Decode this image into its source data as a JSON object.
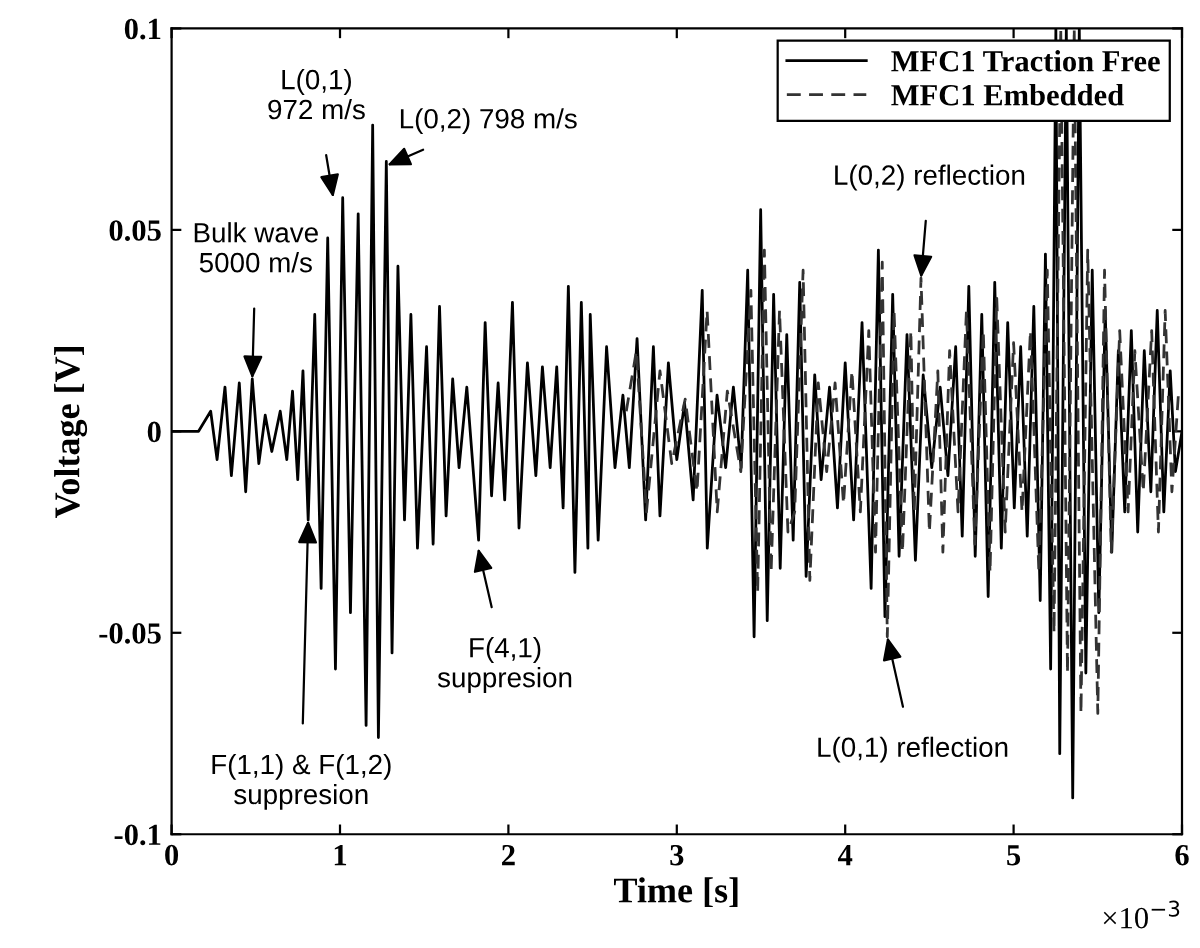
{
  "chart_data": {
    "type": "line",
    "xlabel": "Time [s]",
    "ylabel": "Voltage [V]",
    "xlim": [
      0,
      6
    ],
    "xticks": [
      0,
      1,
      2,
      3,
      4,
      5,
      6
    ],
    "ylim": [
      -0.1,
      0.1
    ],
    "yticks": [
      -0.1,
      -0.05,
      0,
      0.05,
      0.1
    ],
    "grid": false,
    "legend": "top right",
    "marker": "none",
    "series": [
      {
        "name": "MFC1 Traction Free",
        "color": "#000000",
        "line_style": "solid",
        "x": [
          0,
          0.16,
          0.232,
          0.27,
          0.317,
          0.355,
          0.402,
          0.44,
          0.479,
          0.518,
          0.556,
          0.595,
          0.645,
          0.684,
          0.718,
          0.749,
          0.78,
          0.811,
          0.85,
          0.888,
          0.927,
          0.973,
          1.016,
          1.062,
          1.108,
          1.155,
          1.194,
          1.228,
          1.275,
          1.309,
          1.344,
          1.383,
          1.421,
          1.46,
          1.514,
          1.553,
          1.591,
          1.63,
          1.669,
          1.707,
          1.753,
          1.823,
          1.862,
          1.9,
          1.939,
          1.978,
          2.024,
          2.063,
          2.113,
          2.163,
          2.202,
          2.248,
          2.287,
          2.325,
          2.356,
          2.395,
          2.433,
          2.472,
          2.486,
          2.533,
          2.583,
          2.633,
          2.68,
          2.718,
          2.764,
          2.815,
          2.861,
          2.9,
          2.95,
          3.0,
          3.046,
          3.097,
          3.151,
          3.181,
          3.239,
          3.29,
          3.336,
          3.382,
          3.421,
          3.459,
          3.498,
          3.537,
          3.575,
          3.614,
          3.653,
          3.691,
          3.73,
          3.768,
          3.819,
          3.857,
          3.907,
          3.954,
          4.0,
          4.05,
          4.1,
          4.154,
          4.197,
          4.236,
          4.282,
          4.32,
          4.367,
          4.417,
          4.463,
          4.514,
          4.564,
          4.61,
          4.656,
          4.695,
          4.734,
          4.772,
          4.811,
          4.849,
          4.888,
          4.927,
          4.965,
          5.004,
          5.042,
          5.081,
          5.12,
          5.158,
          5.189,
          5.22,
          5.251,
          5.274,
          5.313,
          5.351,
          5.39,
          5.429,
          5.467,
          5.506,
          5.544,
          5.583,
          5.622,
          5.66,
          5.699,
          5.737,
          5.776,
          5.815,
          5.853,
          5.892,
          5.93,
          5.961,
          6.0
        ],
        "values": [
          0,
          0,
          0.005,
          -0.007,
          0.011,
          -0.011,
          0.012,
          -0.015,
          0.013,
          -0.008,
          0.004,
          -0.005,
          0.005,
          -0.007,
          0.01,
          -0.012,
          0.015,
          -0.022,
          0.029,
          -0.039,
          0.048,
          -0.059,
          0.058,
          -0.045,
          0.054,
          -0.073,
          0.076,
          -0.076,
          0.067,
          -0.055,
          0.041,
          -0.022,
          0.029,
          -0.029,
          0.021,
          -0.028,
          0.031,
          -0.021,
          0.013,
          -0.009,
          0.011,
          -0.027,
          0.027,
          -0.016,
          0.012,
          -0.017,
          0.032,
          -0.024,
          0.017,
          -0.011,
          0.016,
          -0.009,
          0.016,
          -0.019,
          0.036,
          -0.035,
          0.032,
          -0.029,
          0.029,
          -0.027,
          0.021,
          -0.009,
          0.009,
          -0.009,
          0.023,
          -0.022,
          0.021,
          -0.021,
          0.017,
          -0.007,
          0.007,
          -0.017,
          0.035,
          -0.029,
          0.009,
          -0.009,
          0.011,
          -0.009,
          0.04,
          -0.051,
          0.055,
          -0.047,
          0.034,
          -0.034,
          0.024,
          -0.027,
          0.037,
          -0.036,
          0.014,
          -0.012,
          0.011,
          -0.019,
          0.017,
          -0.022,
          0.027,
          -0.039,
          0.045,
          -0.046,
          0.034,
          -0.031,
          0.024,
          -0.032,
          0.014,
          -0.009,
          0.011,
          -0.011,
          0.021,
          -0.026,
          0.036,
          -0.031,
          0.029,
          -0.041,
          0.037,
          -0.029,
          0.027,
          -0.019,
          0.021,
          -0.026,
          0.031,
          -0.042,
          0.044,
          -0.059,
          0.1,
          -0.08,
          0.1,
          -0.091,
          0.1,
          -0.06,
          0.04,
          -0.045,
          0.03,
          -0.03,
          0.02,
          -0.02,
          0.025,
          -0.025,
          0.02,
          -0.015,
          0.03,
          -0.02,
          0.015,
          -0.01,
          0
        ]
      },
      {
        "name": "MFC1 Embedded",
        "color": "#333333",
        "line_style": "dashed",
        "x": [
          2.7,
          2.76,
          2.82,
          2.9,
          2.97,
          3.05,
          3.12,
          3.18,
          3.24,
          3.3,
          3.38,
          3.44,
          3.48,
          3.52,
          3.56,
          3.61,
          3.66,
          3.7,
          3.75,
          3.79,
          3.84,
          3.89,
          3.94,
          3.99,
          4.04,
          4.09,
          4.14,
          4.18,
          4.22,
          4.25,
          4.29,
          4.34,
          4.39,
          4.41,
          4.45,
          4.5,
          4.55,
          4.58,
          4.62,
          4.67,
          4.72,
          4.77,
          4.82,
          4.86,
          4.9,
          4.95,
          5.0,
          5.05,
          5.1,
          5.15,
          5.2,
          5.24,
          5.28,
          5.32,
          5.36,
          5.4,
          5.44,
          5.5,
          5.54,
          5.58,
          5.63,
          5.68,
          5.72,
          5.77,
          5.82,
          5.86,
          5.9,
          5.94,
          5.98
        ],
        "values": [
          0.005,
          0.02,
          -0.02,
          0.015,
          -0.008,
          0.008,
          -0.015,
          0.03,
          -0.02,
          0.01,
          -0.01,
          0.035,
          -0.04,
          0.045,
          -0.035,
          0.03,
          -0.025,
          -0.02,
          0.04,
          -0.037,
          0.012,
          -0.01,
          0.012,
          -0.018,
          0.015,
          -0.02,
          0.025,
          -0.03,
          0.042,
          -0.051,
          0.03,
          -0.03,
          0.025,
          -0.02,
          0.038,
          -0.025,
          0.015,
          -0.03,
          0.02,
          -0.02,
          0.03,
          -0.028,
          0.025,
          -0.035,
          0.033,
          -0.025,
          0.022,
          -0.02,
          0.025,
          -0.035,
          0.04,
          -0.05,
          0.1,
          -0.06,
          0.1,
          -0.07,
          0.045,
          -0.07,
          0.04,
          -0.03,
          0.025,
          -0.02,
          0.02,
          -0.015,
          0.025,
          -0.025,
          0.03,
          -0.015,
          0.01
        ]
      }
    ],
    "annotations": [
      {
        "text": "Bulk wave\n5000 m/s",
        "x": 0.479,
        "y": 0.013
      },
      {
        "text": "L(0,1)\n972 m/s",
        "x": 0.96,
        "y": 0.058
      },
      {
        "text": "L(0,2) 798 m/s",
        "x": 1.28,
        "y": 0.066
      },
      {
        "text": "F(1,1) & F(1,2)\nsuppresion",
        "x": 0.811,
        "y": -0.022
      },
      {
        "text": "F(4,1)\nsuppresion",
        "x": 1.82,
        "y": -0.029
      },
      {
        "text": "L(0,2) reflection",
        "x": 4.45,
        "y": 0.038
      },
      {
        "text": "L(0,1) reflection",
        "x": 4.25,
        "y": -0.051
      },
      "×10$^{−3}$"
    ]
  }
}
